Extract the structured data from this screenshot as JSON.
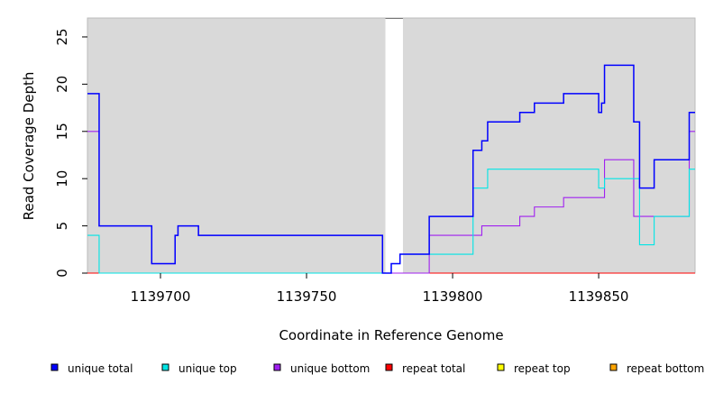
{
  "chart_data": {
    "type": "line",
    "title": "",
    "xlabel": "Coordinate in Reference Genome",
    "ylabel": "Read Coverage Depth",
    "xlim": [
      1139675,
      1139883
    ],
    "ylim": [
      0,
      27
    ],
    "x_ticks": [
      1139700,
      1139750,
      1139800,
      1139850
    ],
    "y_ticks": [
      0,
      5,
      10,
      15,
      20,
      25
    ],
    "plot_background": "#d9d9d9",
    "grid": false,
    "gap_region": [
      1139777,
      1139783
    ],
    "legend_position": "bottom",
    "series": [
      {
        "name": "unique total",
        "color": "#0000ff",
        "points": [
          [
            1139675,
            19
          ],
          [
            1139679,
            19
          ],
          [
            1139679,
            5
          ],
          [
            1139697,
            5
          ],
          [
            1139697,
            1
          ],
          [
            1139705,
            1
          ],
          [
            1139705,
            4
          ],
          [
            1139706,
            4
          ],
          [
            1139706,
            5
          ],
          [
            1139713,
            5
          ],
          [
            1139713,
            4
          ],
          [
            1139776,
            4
          ],
          [
            1139776,
            0
          ],
          [
            1139779,
            0
          ],
          [
            1139779,
            1
          ],
          [
            1139782,
            1
          ],
          [
            1139782,
            2
          ],
          [
            1139792,
            2
          ],
          [
            1139792,
            6
          ],
          [
            1139807,
            6
          ],
          [
            1139807,
            13
          ],
          [
            1139810,
            13
          ],
          [
            1139810,
            14
          ],
          [
            1139812,
            14
          ],
          [
            1139812,
            16
          ],
          [
            1139823,
            16
          ],
          [
            1139823,
            17
          ],
          [
            1139828,
            17
          ],
          [
            1139828,
            18
          ],
          [
            1139838,
            18
          ],
          [
            1139838,
            19
          ],
          [
            1139850,
            19
          ],
          [
            1139850,
            17
          ],
          [
            1139851,
            17
          ],
          [
            1139851,
            18
          ],
          [
            1139852,
            18
          ],
          [
            1139852,
            22
          ],
          [
            1139862,
            22
          ],
          [
            1139862,
            16
          ],
          [
            1139864,
            16
          ],
          [
            1139864,
            9
          ],
          [
            1139869,
            9
          ],
          [
            1139869,
            12
          ],
          [
            1139881,
            12
          ],
          [
            1139881,
            17
          ],
          [
            1139883,
            17
          ]
        ]
      },
      {
        "name": "unique top",
        "color": "#00e5e5",
        "points": [
          [
            1139675,
            4
          ],
          [
            1139679,
            4
          ],
          [
            1139679,
            0
          ],
          [
            1139776,
            0
          ],
          [
            1139776,
            0
          ],
          [
            1139779,
            0
          ],
          [
            1139779,
            1
          ],
          [
            1139782,
            1
          ],
          [
            1139782,
            2
          ],
          [
            1139807,
            2
          ],
          [
            1139807,
            9
          ],
          [
            1139812,
            9
          ],
          [
            1139812,
            11
          ],
          [
            1139850,
            11
          ],
          [
            1139850,
            9
          ],
          [
            1139852,
            9
          ],
          [
            1139852,
            10
          ],
          [
            1139864,
            10
          ],
          [
            1139864,
            3
          ],
          [
            1139869,
            3
          ],
          [
            1139869,
            6
          ],
          [
            1139881,
            6
          ],
          [
            1139881,
            11
          ],
          [
            1139883,
            11
          ]
        ]
      },
      {
        "name": "unique bottom",
        "color": "#a020f0",
        "points": [
          [
            1139675,
            15
          ],
          [
            1139679,
            15
          ],
          [
            1139679,
            5
          ],
          [
            1139697,
            5
          ],
          [
            1139697,
            1
          ],
          [
            1139705,
            1
          ],
          [
            1139705,
            4
          ],
          [
            1139706,
            4
          ],
          [
            1139706,
            5
          ],
          [
            1139713,
            5
          ],
          [
            1139713,
            4
          ],
          [
            1139776,
            4
          ],
          [
            1139776,
            0
          ],
          [
            1139792,
            0
          ],
          [
            1139792,
            4
          ],
          [
            1139810,
            4
          ],
          [
            1139810,
            5
          ],
          [
            1139823,
            5
          ],
          [
            1139823,
            6
          ],
          [
            1139828,
            6
          ],
          [
            1139828,
            7
          ],
          [
            1139838,
            7
          ],
          [
            1139838,
            8
          ],
          [
            1139852,
            8
          ],
          [
            1139852,
            12
          ],
          [
            1139862,
            12
          ],
          [
            1139862,
            6
          ],
          [
            1139881,
            6
          ],
          [
            1139881,
            15
          ],
          [
            1139883,
            15
          ]
        ]
      },
      {
        "name": "repeat total",
        "color": "#ff0000",
        "points": [
          [
            1139675,
            0
          ],
          [
            1139883,
            0
          ]
        ]
      },
      {
        "name": "repeat top",
        "color": "#ffff00",
        "points": [
          [
            1139675,
            0
          ],
          [
            1139883,
            0
          ]
        ]
      },
      {
        "name": "repeat bottom",
        "color": "#ffa500",
        "points": [
          [
            1139675,
            0
          ],
          [
            1139883,
            0
          ]
        ]
      }
    ]
  }
}
